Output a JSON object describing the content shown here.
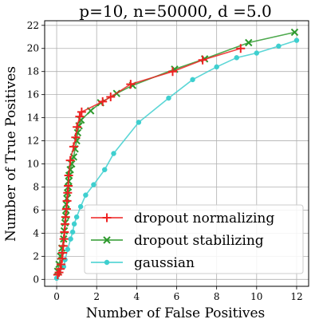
{
  "chart_data": {
    "type": "line",
    "title": "p=10, n=50000, d =5.0",
    "xlabel": "Number of False Positives",
    "ylabel": "Number of True Positives",
    "xlim": [
      -0.6,
      12.6
    ],
    "ylim": [
      -0.6,
      22.4
    ],
    "xticks": [
      0,
      2,
      4,
      6,
      8,
      10,
      12
    ],
    "yticks": [
      0,
      2,
      4,
      6,
      8,
      10,
      12,
      14,
      16,
      18,
      20,
      22
    ],
    "grid": true,
    "legend_position": "lower-right",
    "series": [
      {
        "name": "dropout normalizing",
        "color": "#ee2222",
        "marker": "plus",
        "points": [
          [
            0.05,
            0.4
          ],
          [
            0.12,
            0.6
          ],
          [
            0.18,
            0.9
          ],
          [
            0.22,
            1.3
          ],
          [
            0.27,
            1.8
          ],
          [
            0.3,
            2.3
          ],
          [
            0.33,
            2.9
          ],
          [
            0.36,
            3.5
          ],
          [
            0.39,
            4.1
          ],
          [
            0.42,
            4.8
          ],
          [
            0.45,
            5.4
          ],
          [
            0.49,
            6.1
          ],
          [
            0.52,
            6.8
          ],
          [
            0.55,
            7.5
          ],
          [
            0.58,
            8.1
          ],
          [
            0.6,
            9.0
          ],
          [
            0.68,
            10.3
          ],
          [
            0.85,
            11.5
          ],
          [
            0.95,
            12.3
          ],
          [
            1.02,
            13.2
          ],
          [
            1.15,
            14.1
          ],
          [
            1.25,
            14.5
          ],
          [
            2.3,
            15.4
          ],
          [
            2.7,
            15.8
          ],
          [
            3.7,
            16.9
          ],
          [
            5.8,
            18.0
          ],
          [
            7.3,
            19.0
          ],
          [
            9.2,
            20.0
          ]
        ]
      },
      {
        "name": "dropout stabilizing",
        "color": "#2e9a2e",
        "marker": "x",
        "points": [
          [
            0.05,
            0.7
          ],
          [
            0.12,
            1.3
          ],
          [
            0.2,
            2.0
          ],
          [
            0.26,
            2.7
          ],
          [
            0.35,
            3.5
          ],
          [
            0.38,
            4.2
          ],
          [
            0.42,
            4.9
          ],
          [
            0.46,
            5.5
          ],
          [
            0.47,
            6.0
          ],
          [
            0.48,
            6.5
          ],
          [
            0.51,
            7.0
          ],
          [
            0.54,
            7.5
          ],
          [
            0.58,
            8.0
          ],
          [
            0.6,
            8.5
          ],
          [
            0.62,
            9.0
          ],
          [
            0.68,
            9.5
          ],
          [
            0.75,
            10.0
          ],
          [
            0.85,
            10.6
          ],
          [
            0.92,
            11.3
          ],
          [
            1.0,
            12.0
          ],
          [
            1.05,
            12.7
          ],
          [
            1.12,
            13.3
          ],
          [
            1.22,
            13.8
          ],
          [
            1.7,
            14.6
          ],
          [
            2.2,
            15.3
          ],
          [
            3.0,
            16.1
          ],
          [
            3.8,
            16.8
          ],
          [
            5.9,
            18.2
          ],
          [
            7.4,
            19.1
          ],
          [
            9.6,
            20.5
          ],
          [
            11.9,
            21.4
          ]
        ]
      },
      {
        "name": "gaussian",
        "color": "#3ecfcf",
        "marker": "circle",
        "points": [
          [
            0.0,
            0.1
          ],
          [
            0.12,
            0.6
          ],
          [
            0.35,
            1.1
          ],
          [
            0.42,
            1.7
          ],
          [
            0.55,
            2.6
          ],
          [
            0.7,
            3.5
          ],
          [
            0.8,
            4.1
          ],
          [
            0.88,
            4.8
          ],
          [
            1.0,
            5.4
          ],
          [
            1.2,
            6.3
          ],
          [
            1.45,
            7.3
          ],
          [
            1.85,
            8.2
          ],
          [
            2.4,
            9.5
          ],
          [
            2.85,
            10.9
          ],
          [
            4.1,
            13.6
          ],
          [
            5.6,
            15.7
          ],
          [
            6.8,
            17.3
          ],
          [
            8.0,
            18.4
          ],
          [
            9.0,
            19.2
          ],
          [
            10.0,
            19.6
          ],
          [
            11.1,
            20.2
          ],
          [
            12.0,
            20.7
          ]
        ]
      }
    ]
  }
}
